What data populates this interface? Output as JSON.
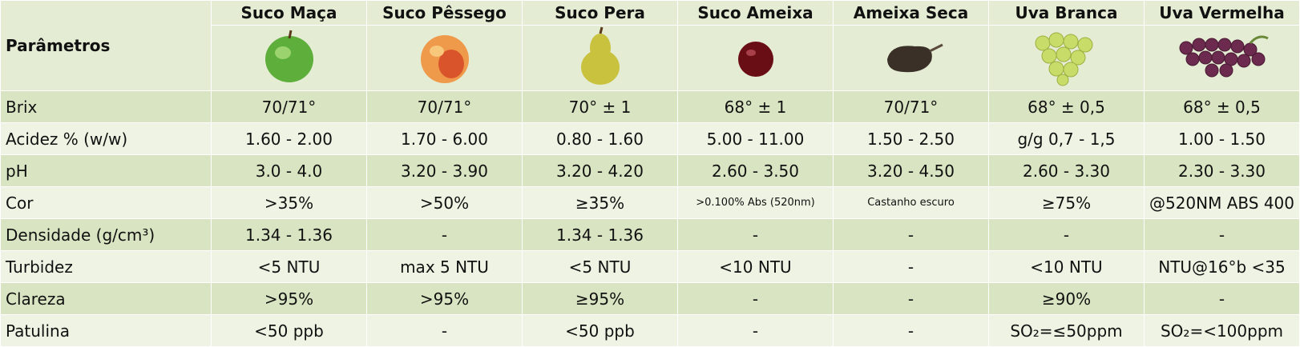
{
  "header": {
    "corner": "Parâmetros",
    "columns": [
      "Suco Maça",
      "Suco Pêssego",
      "Suco Pera",
      "Suco Ameixa",
      "Ameixa Seca",
      "Uva Branca",
      "Uva Vermelha"
    ]
  },
  "table": {
    "rows": [
      [
        "Brix",
        "70/71°",
        "70/71°",
        "70° ± 1",
        "68° ± 1",
        "70/71°",
        "68° ± 0,5",
        "68° ± 0,5"
      ],
      [
        "Acidez %  (w/w)",
        "1.60 - 2.00",
        "1.70 - 6.00",
        "0.80 - 1.60",
        "5.00 - 11.00",
        "1.50 - 2.50",
        "g/g 0,7 - 1,5",
        "1.00 - 1.50"
      ],
      [
        "pH",
        "3.0 - 4.0",
        "3.20 - 3.90",
        "3.20 - 4.20",
        "2.60 - 3.50",
        "3.20 - 4.50",
        "2.60 - 3.30",
        "2.30 - 3.30"
      ],
      [
        "Cor",
        ">35%",
        ">50%",
        "≥35%",
        ">0.100% Abs (520nm)",
        "Castanho escuro",
        "≥75%",
        "@520NM ABS 400"
      ],
      [
        "Densidade (g/cm³)",
        "1.34 - 1.36",
        "-",
        "1.34 - 1.36",
        "-",
        "-",
        "-",
        "-"
      ],
      [
        "Turbidez",
        "<5 NTU",
        "max 5 NTU",
        "<5 NTU",
        "<10 NTU",
        "-",
        "<10 NTU",
        "NTU@16°b <35"
      ],
      [
        "Clareza",
        ">95%",
        ">95%",
        "≥95%",
        "-",
        "-",
        "≥90%",
        "-"
      ],
      [
        "Patulina",
        "<50 ppb",
        "-",
        "<50 ppb",
        "-",
        "-",
        "SO₂=≤50ppm",
        "SO₂=<100ppm"
      ]
    ]
  }
}
